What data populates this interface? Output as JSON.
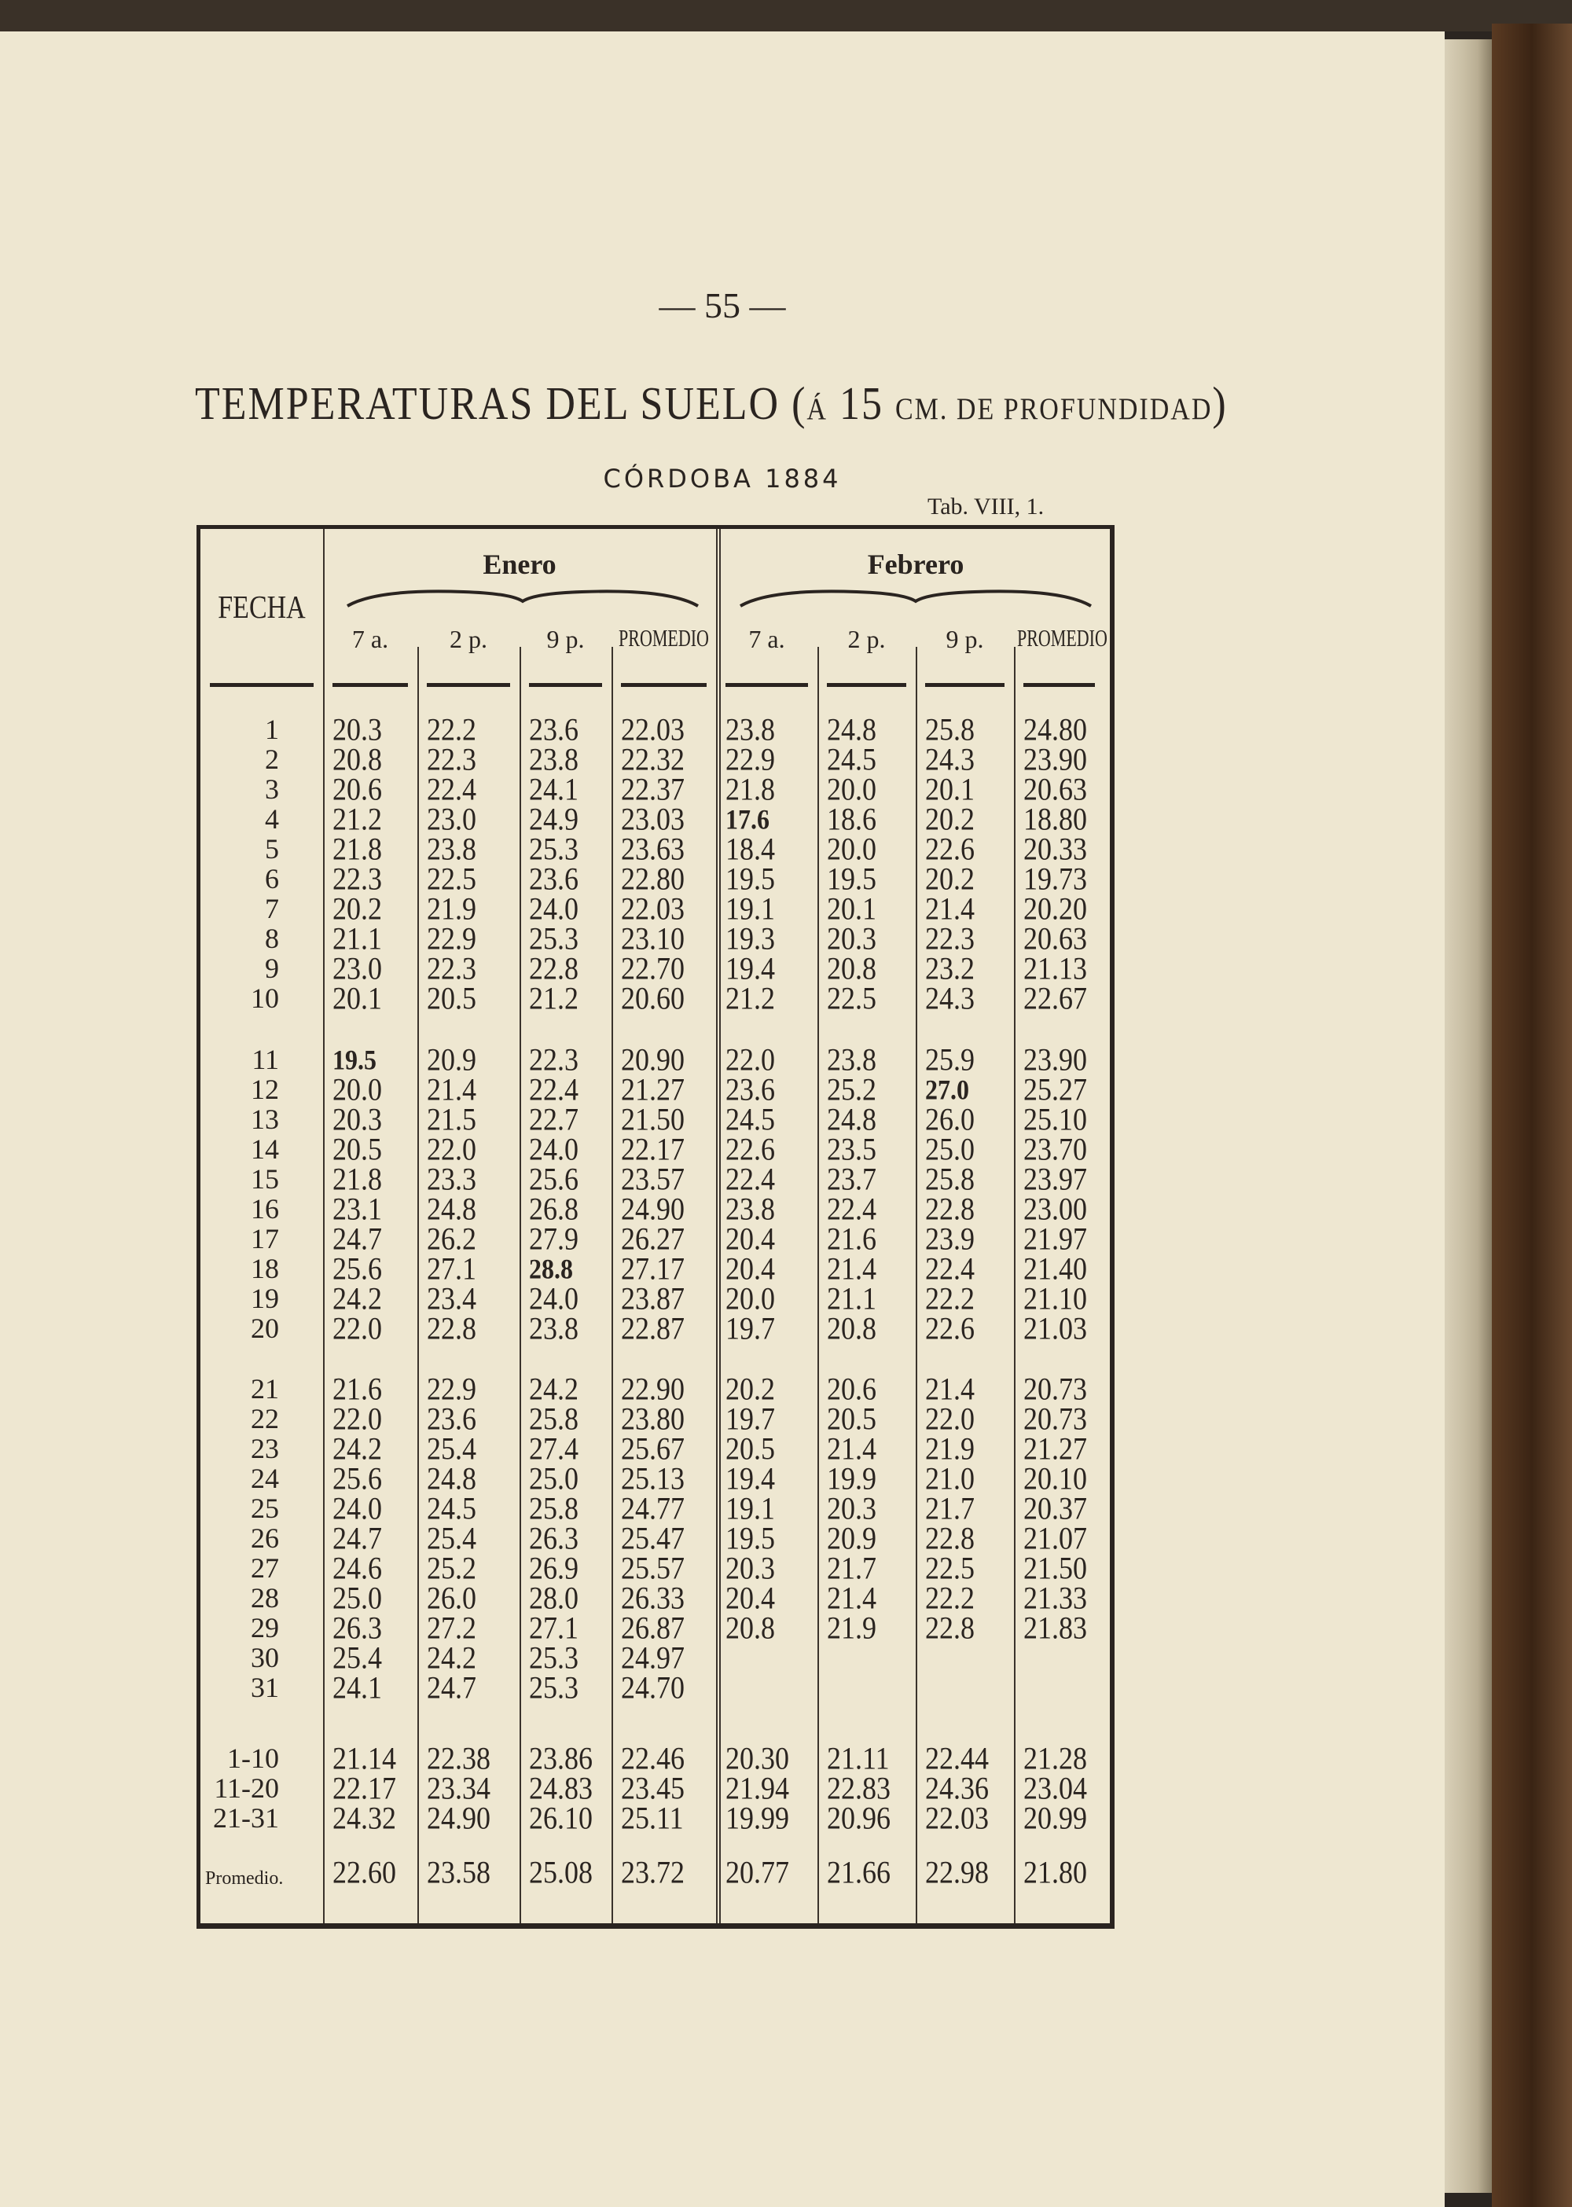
{
  "page_number": "— 55 —",
  "title": {
    "main": "TEMPERATURAS DEL SUELO (",
    "accent": "Á",
    "depth": " 15 ",
    "rest": "CM. DE PROFUNDIDAD",
    "close": ")"
  },
  "subtitle": "CÓRDOBA 1884",
  "table_ref": "Tab. VIII, 1.",
  "table": {
    "fecha_header": "FECHA",
    "months": [
      "Enero",
      "Febrero"
    ],
    "columns": [
      "7 a.",
      "2 p.",
      "9 p.",
      "PROMEDIO",
      "7 a.",
      "2 p.",
      "9 p.",
      "PROMEDIO"
    ],
    "groups": [
      {
        "rows": [
          [
            "1",
            "20.3",
            "22.2",
            "23.6",
            "22.03",
            "23.8",
            "24.8",
            "25.8",
            "24.80"
          ],
          [
            "2",
            "20.8",
            "22.3",
            "23.8",
            "22.32",
            "22.9",
            "24.5",
            "24.3",
            "23.90"
          ],
          [
            "3",
            "20.6",
            "22.4",
            "24.1",
            "22.37",
            "21.8",
            "20.0",
            "20.1",
            "20.63"
          ],
          [
            "4",
            "21.2",
            "23.0",
            "24.9",
            "23.03",
            "17.6",
            "18.6",
            "20.2",
            "18.80"
          ],
          [
            "5",
            "21.8",
            "23.8",
            "25.3",
            "23.63",
            "18.4",
            "20.0",
            "22.6",
            "20.33"
          ],
          [
            "6",
            "22.3",
            "22.5",
            "23.6",
            "22.80",
            "19.5",
            "19.5",
            "20.2",
            "19.73"
          ],
          [
            "7",
            "20.2",
            "21.9",
            "24.0",
            "22.03",
            "19.1",
            "20.1",
            "21.4",
            "20.20"
          ],
          [
            "8",
            "21.1",
            "22.9",
            "25.3",
            "23.10",
            "19.3",
            "20.3",
            "22.3",
            "20.63"
          ],
          [
            "9",
            "23.0",
            "22.3",
            "22.8",
            "22.70",
            "19.4",
            "20.8",
            "23.2",
            "21.13"
          ],
          [
            "10",
            "20.1",
            "20.5",
            "21.2",
            "20.60",
            "21.2",
            "22.5",
            "24.3",
            "22.67"
          ]
        ]
      },
      {
        "rows": [
          [
            "11",
            "19.5",
            "20.9",
            "22.3",
            "20.90",
            "22.0",
            "23.8",
            "25.9",
            "23.90"
          ],
          [
            "12",
            "20.0",
            "21.4",
            "22.4",
            "21.27",
            "23.6",
            "25.2",
            "27.0",
            "25.27"
          ],
          [
            "13",
            "20.3",
            "21.5",
            "22.7",
            "21.50",
            "24.5",
            "24.8",
            "26.0",
            "25.10"
          ],
          [
            "14",
            "20.5",
            "22.0",
            "24.0",
            "22.17",
            "22.6",
            "23.5",
            "25.0",
            "23.70"
          ],
          [
            "15",
            "21.8",
            "23.3",
            "25.6",
            "23.57",
            "22.4",
            "23.7",
            "25.8",
            "23.97"
          ],
          [
            "16",
            "23.1",
            "24.8",
            "26.8",
            "24.90",
            "23.8",
            "22.4",
            "22.8",
            "23.00"
          ],
          [
            "17",
            "24.7",
            "26.2",
            "27.9",
            "26.27",
            "20.4",
            "21.6",
            "23.9",
            "21.97"
          ],
          [
            "18",
            "25.6",
            "27.1",
            "28.8",
            "27.17",
            "20.4",
            "21.4",
            "22.4",
            "21.40"
          ],
          [
            "19",
            "24.2",
            "23.4",
            "24.0",
            "23.87",
            "20.0",
            "21.1",
            "22.2",
            "21.10"
          ],
          [
            "20",
            "22.0",
            "22.8",
            "23.8",
            "22.87",
            "19.7",
            "20.8",
            "22.6",
            "21.03"
          ]
        ]
      },
      {
        "rows": [
          [
            "21",
            "21.6",
            "22.9",
            "24.2",
            "22.90",
            "20.2",
            "20.6",
            "21.4",
            "20.73"
          ],
          [
            "22",
            "22.0",
            "23.6",
            "25.8",
            "23.80",
            "19.7",
            "20.5",
            "22.0",
            "20.73"
          ],
          [
            "23",
            "24.2",
            "25.4",
            "27.4",
            "25.67",
            "20.5",
            "21.4",
            "21.9",
            "21.27"
          ],
          [
            "24",
            "25.6",
            "24.8",
            "25.0",
            "25.13",
            "19.4",
            "19.9",
            "21.0",
            "20.10"
          ],
          [
            "25",
            "24.0",
            "24.5",
            "25.8",
            "24.77",
            "19.1",
            "20.3",
            "21.7",
            "20.37"
          ],
          [
            "26",
            "24.7",
            "25.4",
            "26.3",
            "25.47",
            "19.5",
            "20.9",
            "22.8",
            "21.07"
          ],
          [
            "27",
            "24.6",
            "25.2",
            "26.9",
            "25.57",
            "20.3",
            "21.7",
            "22.5",
            "21.50"
          ],
          [
            "28",
            "25.0",
            "26.0",
            "28.0",
            "26.33",
            "20.4",
            "21.4",
            "22.2",
            "21.33"
          ],
          [
            "29",
            "26.3",
            "27.2",
            "27.1",
            "26.87",
            "20.8",
            "21.9",
            "22.8",
            "21.83"
          ],
          [
            "30",
            "25.4",
            "24.2",
            "25.3",
            "24.97",
            "",
            "",
            "",
            ""
          ],
          [
            "31",
            "24.1",
            "24.7",
            "25.3",
            "24.70",
            "",
            "",
            "",
            ""
          ]
        ]
      },
      {
        "rows": [
          [
            "1-10",
            "21.14",
            "22.38",
            "23.86",
            "22.46",
            "20.30",
            "21.11",
            "22.44",
            "21.28"
          ],
          [
            "11-20",
            "22.17",
            "23.34",
            "24.83",
            "23.45",
            "21.94",
            "22.83",
            "24.36",
            "23.04"
          ],
          [
            "21-31",
            "24.32",
            "24.90",
            "26.10",
            "25.11",
            "19.99",
            "20.96",
            "22.03",
            "20.99"
          ]
        ]
      },
      {
        "rows": [
          [
            "Promedio.",
            "22.60",
            "23.58",
            "25.08",
            "23.72",
            "20.77",
            "21.66",
            "22.98",
            "21.80"
          ]
        ]
      }
    ],
    "bold_cells": [
      "4:5",
      "11:1",
      "12:7",
      "18:3"
    ]
  }
}
